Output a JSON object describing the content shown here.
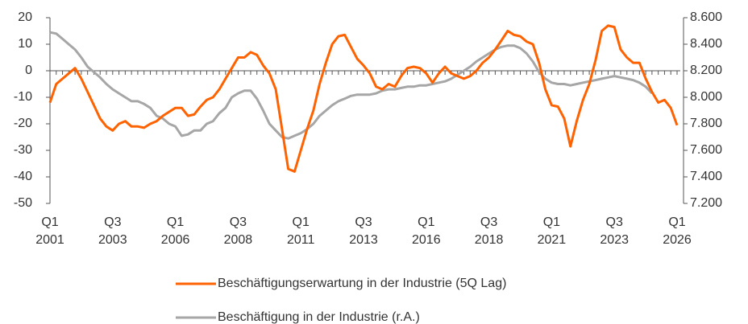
{
  "chart_data": {
    "type": "line",
    "categories": [
      "Q1\n2001",
      null,
      null,
      null,
      null,
      null,
      null,
      null,
      null,
      null,
      "Q3\n2003",
      null,
      null,
      null,
      null,
      null,
      null,
      null,
      null,
      null,
      "Q1\n2006",
      null,
      null,
      null,
      null,
      null,
      null,
      null,
      null,
      null,
      "Q3\n2008",
      null,
      null,
      null,
      null,
      null,
      null,
      null,
      null,
      null,
      "Q1\n2011",
      null,
      null,
      null,
      null,
      null,
      null,
      null,
      null,
      null,
      "Q3\n2013",
      null,
      null,
      null,
      null,
      null,
      null,
      null,
      null,
      null,
      "Q1\n2016",
      null,
      null,
      null,
      null,
      null,
      null,
      null,
      null,
      null,
      "Q3\n2018",
      null,
      null,
      null,
      null,
      null,
      null,
      null,
      null,
      null,
      "Q1\n2021",
      null,
      null,
      null,
      null,
      null,
      null,
      null,
      null,
      null,
      "Q3\n2023",
      null,
      null,
      null,
      null,
      null,
      null,
      null,
      null,
      null,
      "Q1\n2026"
    ],
    "series": [
      {
        "name": "Beschäftigungserwartung in der Industrie (5Q Lag)",
        "color": "#ff6200",
        "axis": "y",
        "values": [
          -12,
          -5,
          -3,
          -1,
          1,
          -3,
          -8,
          -13,
          -18,
          -21,
          -22.5,
          -20,
          -19,
          -21,
          -21,
          -21.5,
          -20,
          -19,
          -17,
          -15.5,
          -14,
          -14,
          -17,
          -16.5,
          -13.5,
          -11,
          -10,
          -7,
          -3,
          1,
          5,
          5,
          7,
          6,
          2,
          -1,
          -7,
          -22,
          -37,
          -38,
          -30,
          -22,
          -15,
          -5,
          3,
          10,
          13,
          13.5,
          9,
          4.5,
          2,
          -1,
          -6,
          -7,
          -5,
          -6,
          -2,
          1,
          1.5,
          1,
          -1,
          -4.5,
          -1,
          1.5,
          -1,
          -2,
          -3,
          -2,
          0,
          3,
          5,
          8,
          11.5,
          15,
          13.5,
          13,
          11,
          10,
          3,
          -7,
          -13,
          -13.5,
          -18,
          -28.5,
          -19,
          -11,
          -5,
          4,
          15,
          17,
          16.5,
          8,
          5,
          3,
          3,
          -3,
          -8,
          -12,
          -11,
          -14,
          -20.5
        ]
      },
      {
        "name": "Beschäftigung in der Industrie (r.A.)",
        "color": "#a6a6a6",
        "axis": "y2",
        "values": [
          8490,
          8480,
          8440,
          8400,
          8360,
          8300,
          8230,
          8190,
          8150,
          8100,
          8060,
          8030,
          8000,
          7970,
          7970,
          7950,
          7920,
          7860,
          7840,
          7800,
          7780,
          7710,
          7720,
          7750,
          7750,
          7800,
          7820,
          7880,
          7920,
          8000,
          8030,
          8050,
          8050,
          7990,
          7900,
          7800,
          7750,
          7700,
          7690,
          7710,
          7730,
          7760,
          7800,
          7860,
          7900,
          7940,
          7970,
          7990,
          8010,
          8020,
          8020,
          8020,
          8030,
          8050,
          8060,
          8060,
          8070,
          8080,
          8080,
          8090,
          8090,
          8100,
          8110,
          8120,
          8140,
          8170,
          8200,
          8230,
          8270,
          8300,
          8330,
          8360,
          8380,
          8390,
          8390,
          8370,
          8330,
          8270,
          8190,
          8140,
          8110,
          8100,
          8100,
          8090,
          8100,
          8110,
          8120,
          8130,
          8140,
          8150,
          8160,
          8150,
          8140,
          8130,
          8110,
          8080,
          8030,
          null,
          null,
          null,
          null
        ]
      }
    ],
    "ylim": [
      -50,
      20
    ],
    "yticks": [
      -50,
      -40,
      -30,
      -20,
      -10,
      0,
      10,
      20
    ],
    "y2lim": [
      7200,
      8600
    ],
    "y2ticks": [
      {
        "value": 7200,
        "label": "7.200"
      },
      {
        "value": 7400,
        "label": "7.400"
      },
      {
        "value": 7600,
        "label": "7.600"
      },
      {
        "value": 7800,
        "label": "7.800"
      },
      {
        "value": 8000,
        "label": "8.000"
      },
      {
        "value": 8200,
        "label": "8.200"
      },
      {
        "value": 8400,
        "label": "8.400"
      },
      {
        "value": 8600,
        "label": "8.600"
      }
    ]
  }
}
